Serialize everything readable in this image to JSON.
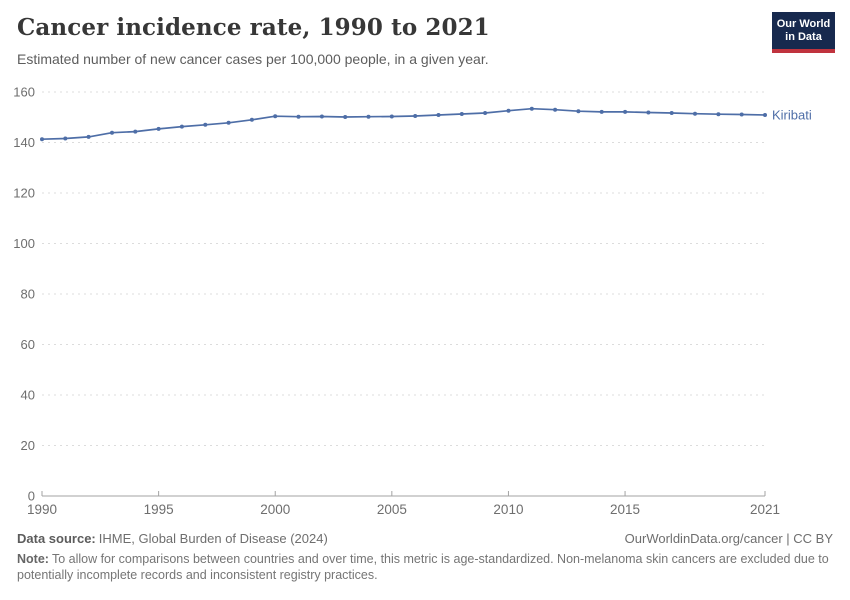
{
  "header": {
    "title": "Cancer incidence rate, 1990 to 2021",
    "subtitle": "Estimated number of new cancer cases per 100,000 people, in a given year."
  },
  "logo": {
    "line1": "Our World",
    "line2": "in Data",
    "bg_color": "#17294e",
    "accent_color": "#c0333e"
  },
  "chart_data": {
    "type": "line",
    "title": "Cancer incidence rate, 1990 to 2021",
    "x": [
      1990,
      1991,
      1992,
      1993,
      1994,
      1995,
      1996,
      1997,
      1998,
      1999,
      2000,
      2001,
      2002,
      2003,
      2004,
      2005,
      2006,
      2007,
      2008,
      2009,
      2010,
      2011,
      2012,
      2013,
      2014,
      2015,
      2016,
      2017,
      2018,
      2019,
      2020,
      2021
    ],
    "series": [
      {
        "name": "Kiribati",
        "color": "#4e6ea7",
        "values": [
          141.3,
          141.6,
          142.2,
          143.9,
          144.3,
          145.4,
          146.3,
          147.0,
          147.8,
          149.0,
          150.4,
          150.2,
          150.3,
          150.1,
          150.2,
          150.3,
          150.5,
          150.9,
          151.3,
          151.7,
          152.6,
          153.4,
          153.0,
          152.4,
          152.1,
          152.1,
          151.9,
          151.7,
          151.4,
          151.2,
          151.1,
          150.9
        ]
      }
    ],
    "xlabel": "",
    "ylabel": "",
    "ylim": [
      0,
      160
    ],
    "yticks": [
      0,
      20,
      40,
      60,
      80,
      100,
      120,
      140,
      160
    ],
    "xticks": [
      1990,
      1995,
      2000,
      2005,
      2010,
      2015,
      2021
    ],
    "grid": "dashed-horizontal",
    "legend_position": "end-of-line-label",
    "gridline_color": "#dcdcdc",
    "axis_color": "#a3a3a3",
    "tick_label_color": "#6e6e6e"
  },
  "footer": {
    "data_source_label": "Data source:",
    "data_source": "IHME, Global Burden of Disease (2024)",
    "attribution": "OurWorldinData.org/cancer | CC BY",
    "note_label": "Note:",
    "note": "To allow for comparisons between countries and over time, this metric is age-standardized. Non-melanoma skin cancers are excluded due to potentially incomplete records and inconsistent registry practices."
  }
}
